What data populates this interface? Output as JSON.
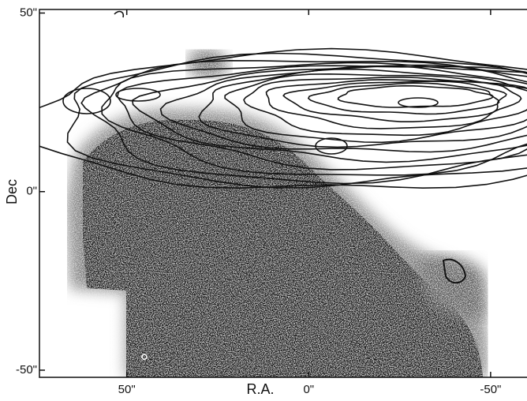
{
  "chart_data": {
    "type": "image",
    "xlabel": "R.A.",
    "ylabel": "Dec",
    "xlim": [
      74,
      -60
    ],
    "ylim": [
      -52,
      51
    ],
    "xticks": [
      {
        "value": 50,
        "label": "50\""
      },
      {
        "value": 0,
        "label": "0\""
      },
      {
        "value": -50,
        "label": "-50\""
      }
    ],
    "yticks": [
      {
        "value": 50,
        "label": "50\""
      },
      {
        "value": 0,
        "label": "0\""
      },
      {
        "value": -50,
        "label": "-50\""
      }
    ]
  }
}
